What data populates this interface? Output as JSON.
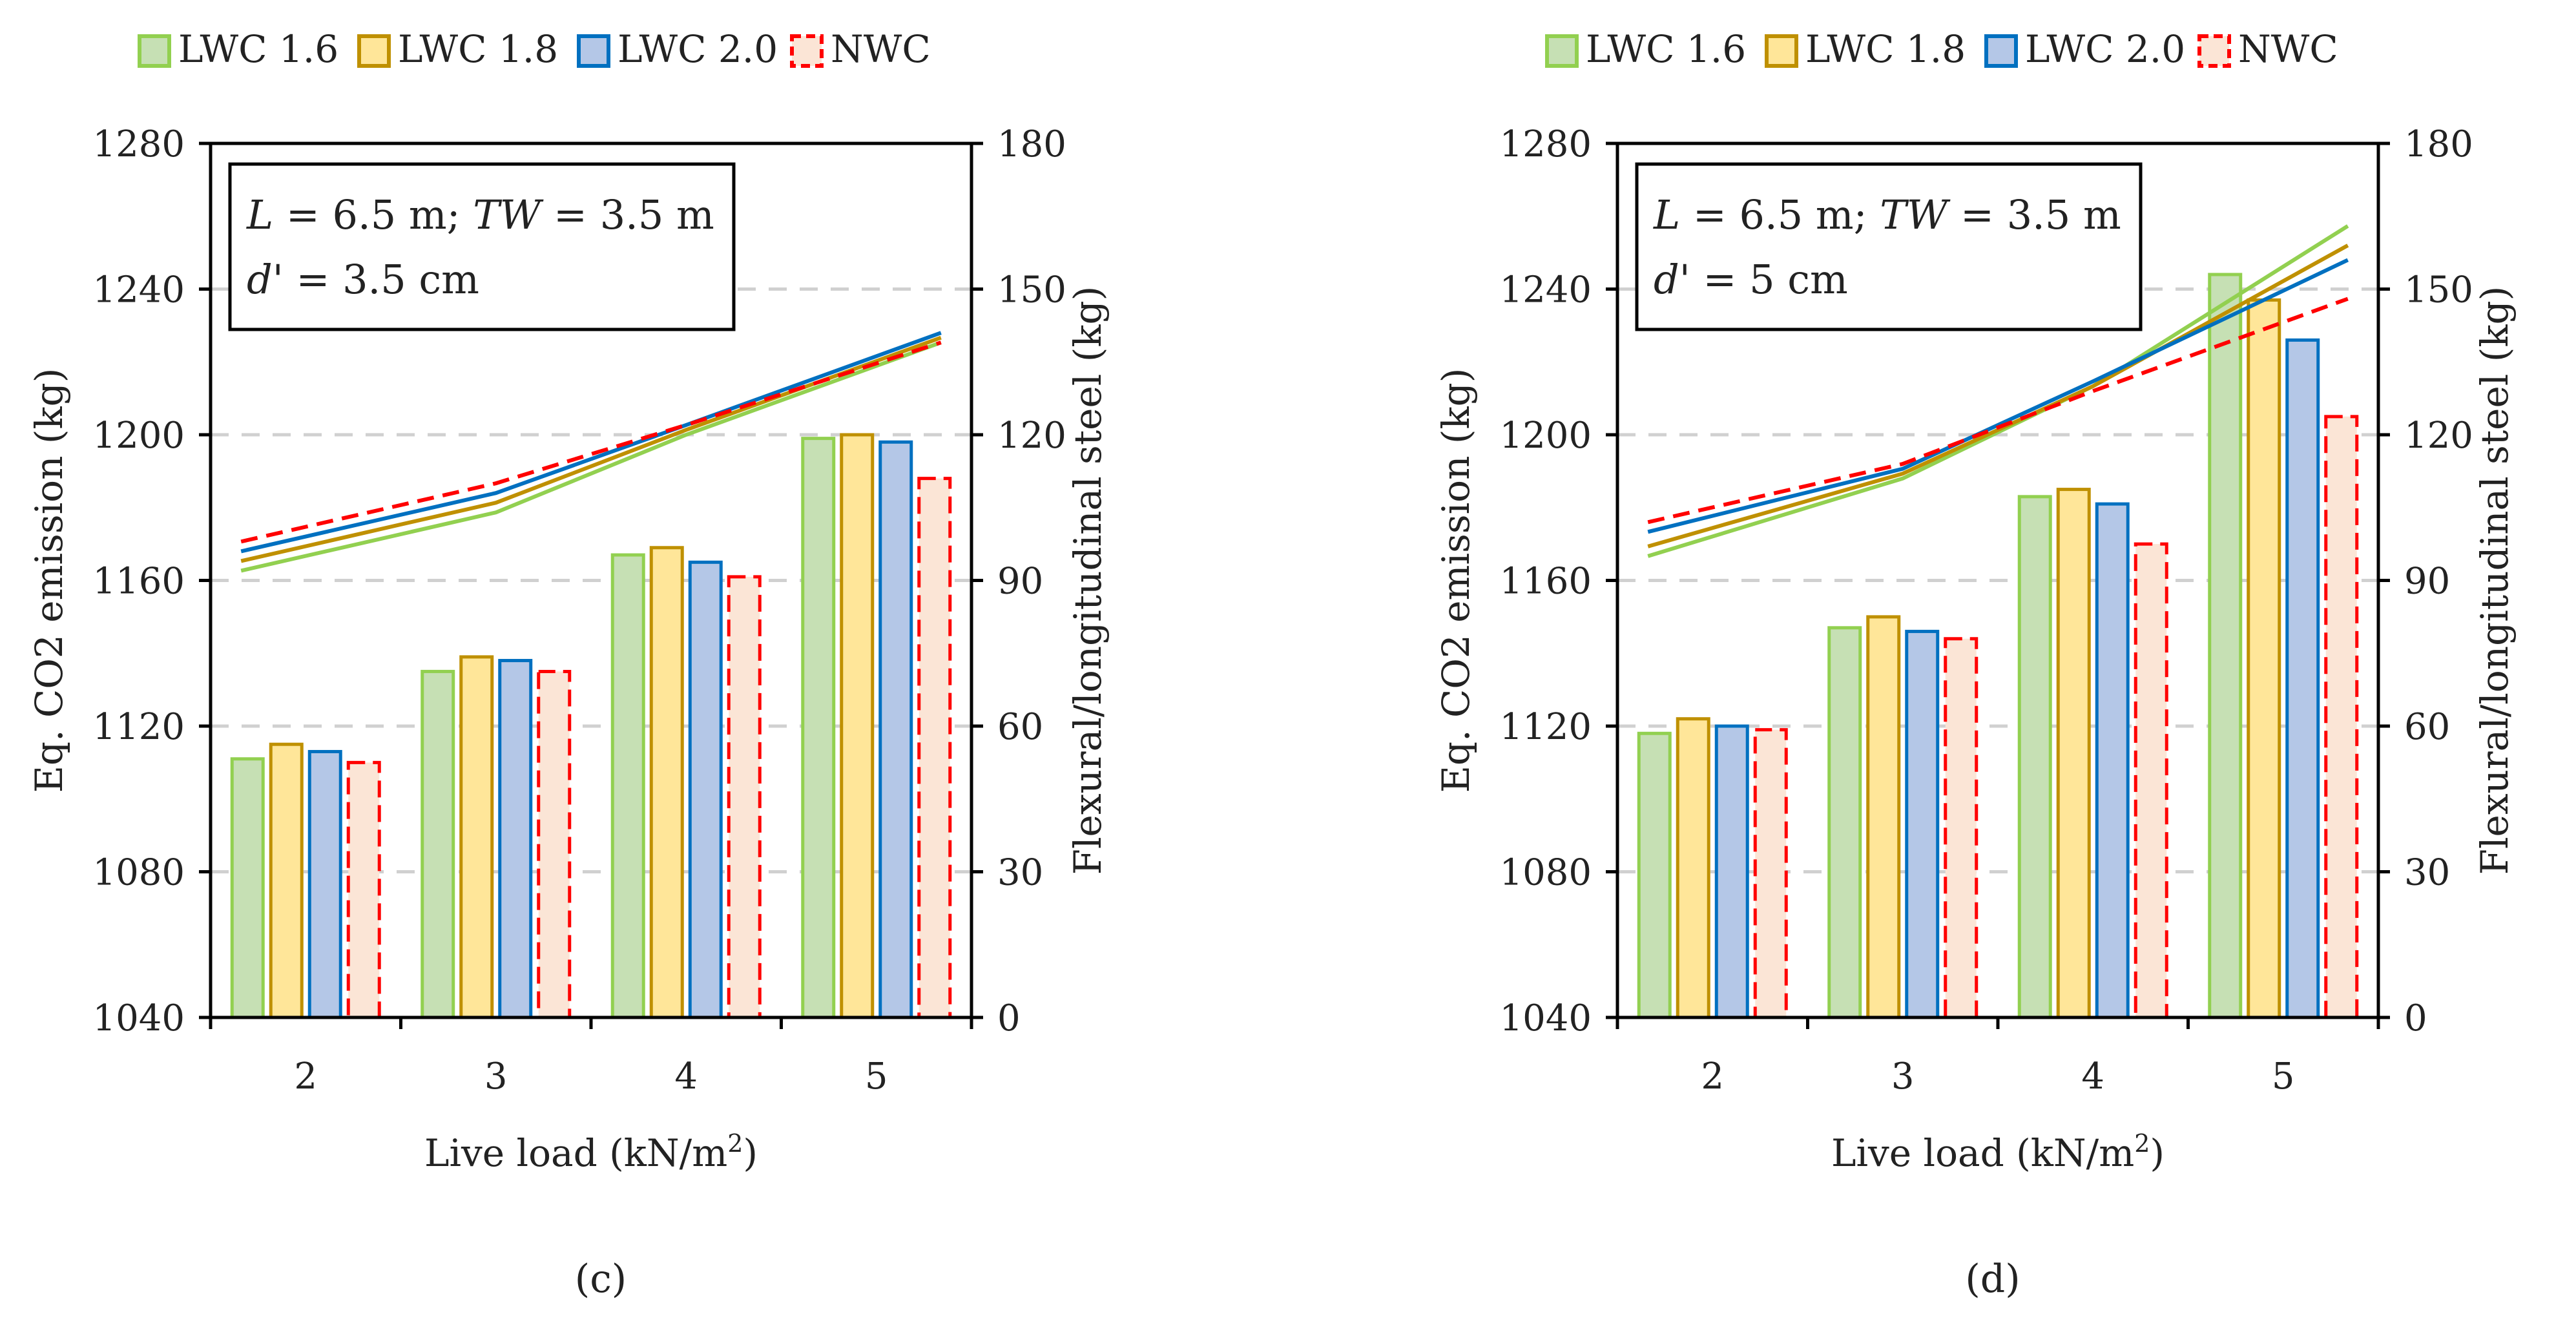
{
  "colors": {
    "lwc16": "#92D050",
    "lwc16_fill": "#C6E0B4",
    "lwc18": "#BF9000",
    "lwc18_fill": "#FFE699",
    "lwc20": "#0070C0",
    "lwc20_fill": "#B4C7E7",
    "nwc": "#FF0000",
    "nwc_fill": "#FBE5D6",
    "grid": "#D0D0D0",
    "axis": "#000000"
  },
  "chart_data": [
    {
      "type": "bar",
      "panel_label": "(c)",
      "legend": [
        "LWC 1.6",
        "LWC 1.8",
        "LWC 2.0",
        "NWC"
      ],
      "annotation": {
        "line1": [
          "L",
          " = 6.5 m; ",
          "TW",
          " = 3.5 m"
        ],
        "line2": [
          "d'",
          " = 3.5 cm"
        ]
      },
      "xlabel": "Live load (kN/m",
      "xlabel_sup": "2",
      "xlabel_end": ")",
      "ylabel": "Eq. CO2 emission (kg)",
      "y2label": "Flexural/longitudinal steel (kg)",
      "categories": [
        "2",
        "3",
        "4",
        "5"
      ],
      "ylim": [
        1040,
        1280
      ],
      "yticks": [
        "1040",
        "1080",
        "1120",
        "1160",
        "1200",
        "1240",
        "1280"
      ],
      "y2lim": [
        0,
        180
      ],
      "y2ticks": [
        "0",
        "30",
        "60",
        "90",
        "120",
        "150",
        "180"
      ],
      "bar_series": [
        {
          "name": "LWC 1.6",
          "values": [
            1111,
            1135,
            1167,
            1199
          ]
        },
        {
          "name": "LWC 1.8",
          "values": [
            1115,
            1139,
            1169,
            1200
          ]
        },
        {
          "name": "LWC 2.0",
          "values": [
            1113,
            1138,
            1165,
            1198
          ]
        },
        {
          "name": "NWC",
          "values": [
            1110,
            1135,
            1161,
            1188
          ]
        }
      ],
      "line_series": [
        {
          "name": "LWC 1.6",
          "values": [
            92,
            104,
            120,
            139
          ]
        },
        {
          "name": "LWC 1.8",
          "values": [
            94,
            106,
            121,
            140
          ]
        },
        {
          "name": "LWC 2.0",
          "values": [
            96,
            108,
            122,
            141
          ]
        },
        {
          "name": "NWC",
          "values": [
            98,
            110,
            122,
            139
          ]
        }
      ]
    },
    {
      "type": "bar",
      "panel_label": "(d)",
      "legend": [
        "LWC 1.6",
        "LWC 1.8",
        "LWC 2.0",
        "NWC"
      ],
      "annotation": {
        "line1": [
          "L",
          " = 6.5 m; ",
          "TW",
          " = 3.5 m"
        ],
        "line2": [
          "d'",
          " = 5 cm"
        ]
      },
      "xlabel": "Live load (kN/m",
      "xlabel_sup": "2",
      "xlabel_end": ")",
      "ylabel": "Eq. CO2 emission (kg)",
      "y2label": "Flexural/longitudinal steel (kg)",
      "categories": [
        "2",
        "3",
        "4",
        "5"
      ],
      "ylim": [
        1040,
        1280
      ],
      "yticks": [
        "1040",
        "1080",
        "1120",
        "1160",
        "1200",
        "1240",
        "1280"
      ],
      "y2lim": [
        0,
        180
      ],
      "y2ticks": [
        "0",
        "30",
        "60",
        "90",
        "120",
        "150",
        "180"
      ],
      "bar_series": [
        {
          "name": "LWC 1.6",
          "values": [
            1118,
            1147,
            1183,
            1244
          ]
        },
        {
          "name": "LWC 1.8",
          "values": [
            1122,
            1150,
            1185,
            1237
          ]
        },
        {
          "name": "LWC 2.0",
          "values": [
            1120,
            1146,
            1181,
            1226
          ]
        },
        {
          "name": "NWC",
          "values": [
            1119,
            1144,
            1170,
            1205
          ]
        }
      ],
      "line_series": [
        {
          "name": "LWC 1.6",
          "values": [
            95,
            111,
            130,
            163
          ]
        },
        {
          "name": "LWC 1.8",
          "values": [
            97,
            112,
            130,
            159
          ]
        },
        {
          "name": "LWC 2.0",
          "values": [
            100,
            113,
            131,
            156
          ]
        },
        {
          "name": "NWC",
          "values": [
            102,
            114,
            129,
            148
          ]
        }
      ]
    }
  ]
}
